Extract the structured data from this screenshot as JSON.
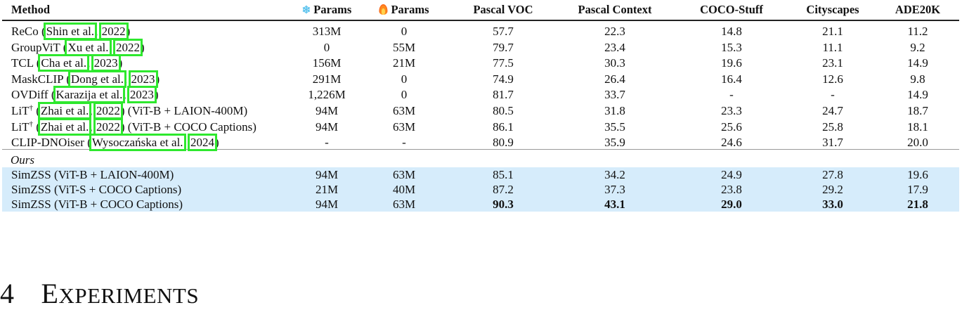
{
  "table": {
    "headers": {
      "method": "Method",
      "frozen_params": "Params",
      "trainable_params": "Params",
      "pascal_voc": "Pascal VOC",
      "pascal_context": "Pascal Context",
      "coco_stuff": "COCO-Stuff",
      "cityscapes": "Cityscapes",
      "ade20k": "ADE20K"
    },
    "header_icons": {
      "frozen": "snowflake-icon",
      "trainable": "fire-icon"
    },
    "baselines": [
      {
        "name": "ReCo",
        "cite_author": "Shin et al.",
        "cite_year": "2022",
        "suffix": "",
        "dagger": "",
        "frozen": "313M",
        "trainable": "0",
        "voc": "57.7",
        "context": "22.3",
        "stuff": "14.8",
        "city": "21.1",
        "ade": "11.2"
      },
      {
        "name": "GroupViT",
        "cite_author": "Xu et al.",
        "cite_year": "2022",
        "suffix": "",
        "dagger": "",
        "frozen": "0",
        "trainable": "55M",
        "voc": "79.7",
        "context": "23.4",
        "stuff": "15.3",
        "city": "11.1",
        "ade": "9.2"
      },
      {
        "name": "TCL",
        "cite_author": "Cha et al.",
        "cite_year": "2023",
        "suffix": "",
        "dagger": "",
        "frozen": "156M",
        "trainable": "21M",
        "voc": "77.5",
        "context": "30.3",
        "stuff": "19.6",
        "city": "23.1",
        "ade": "14.9"
      },
      {
        "name": "MaskCLIP",
        "cite_author": "Dong et al.",
        "cite_year": "2023",
        "suffix": "",
        "dagger": "",
        "frozen": "291M",
        "trainable": "0",
        "voc": "74.9",
        "context": "26.4",
        "stuff": "16.4",
        "city": "12.6",
        "ade": "9.8"
      },
      {
        "name": "OVDiff",
        "cite_author": "Karazija et al.",
        "cite_year": "2023",
        "suffix": "",
        "dagger": "",
        "frozen": "1,226M",
        "trainable": "0",
        "voc": "81.7",
        "context": "33.7",
        "stuff": "-",
        "city": "-",
        "ade": "14.9"
      },
      {
        "name": "LiT",
        "cite_author": "Zhai et al.",
        "cite_year": "2022",
        "suffix": "(ViT-B + LAION-400M)",
        "dagger": "†",
        "frozen": "94M",
        "trainable": "63M",
        "voc": "80.5",
        "context": "31.8",
        "stuff": "23.3",
        "city": "24.7",
        "ade": "18.7"
      },
      {
        "name": "LiT",
        "cite_author": "Zhai et al.",
        "cite_year": "2022",
        "suffix": "(ViT-B + COCO Captions)",
        "dagger": "†",
        "frozen": "94M",
        "trainable": "63M",
        "voc": "86.1",
        "context": "35.5",
        "stuff": "25.6",
        "city": "25.8",
        "ade": "18.1"
      },
      {
        "name": "CLIP-DNOiser",
        "cite_author": "Wysoczańska et al.",
        "cite_year": "2024",
        "suffix": "",
        "dagger": "",
        "frozen": "-",
        "trainable": "-",
        "voc": "80.9",
        "context": "35.9",
        "stuff": "24.6",
        "city": "31.7",
        "ade": "20.0"
      }
    ],
    "ours_label": "Ours",
    "ours": [
      {
        "name": "SimZSS (ViT-B + LAION-400M)",
        "frozen": "94M",
        "trainable": "63M",
        "voc": "85.1",
        "context": "34.2",
        "stuff": "24.9",
        "city": "27.8",
        "ade": "19.6"
      },
      {
        "name": "SimZSS (ViT-S + COCO Captions)",
        "frozen": "21M",
        "trainable": "40M",
        "voc": "87.2",
        "context": "37.3",
        "stuff": "23.8",
        "city": "29.2",
        "ade": "17.9"
      },
      {
        "name": "SimZSS (ViT-B + COCO Captions)",
        "frozen": "94M",
        "trainable": "63M",
        "voc": "90.3",
        "context": "43.1",
        "stuff": "29.0",
        "city": "33.0",
        "ade": "21.8"
      }
    ],
    "colors": {
      "highlight_row": "#d6ecfb",
      "citation_box": "#2ee82e",
      "snowflake": "#5ec4ee"
    }
  },
  "section": {
    "number": "4",
    "title_first": "E",
    "title_rest": "XPERIMENTS"
  }
}
